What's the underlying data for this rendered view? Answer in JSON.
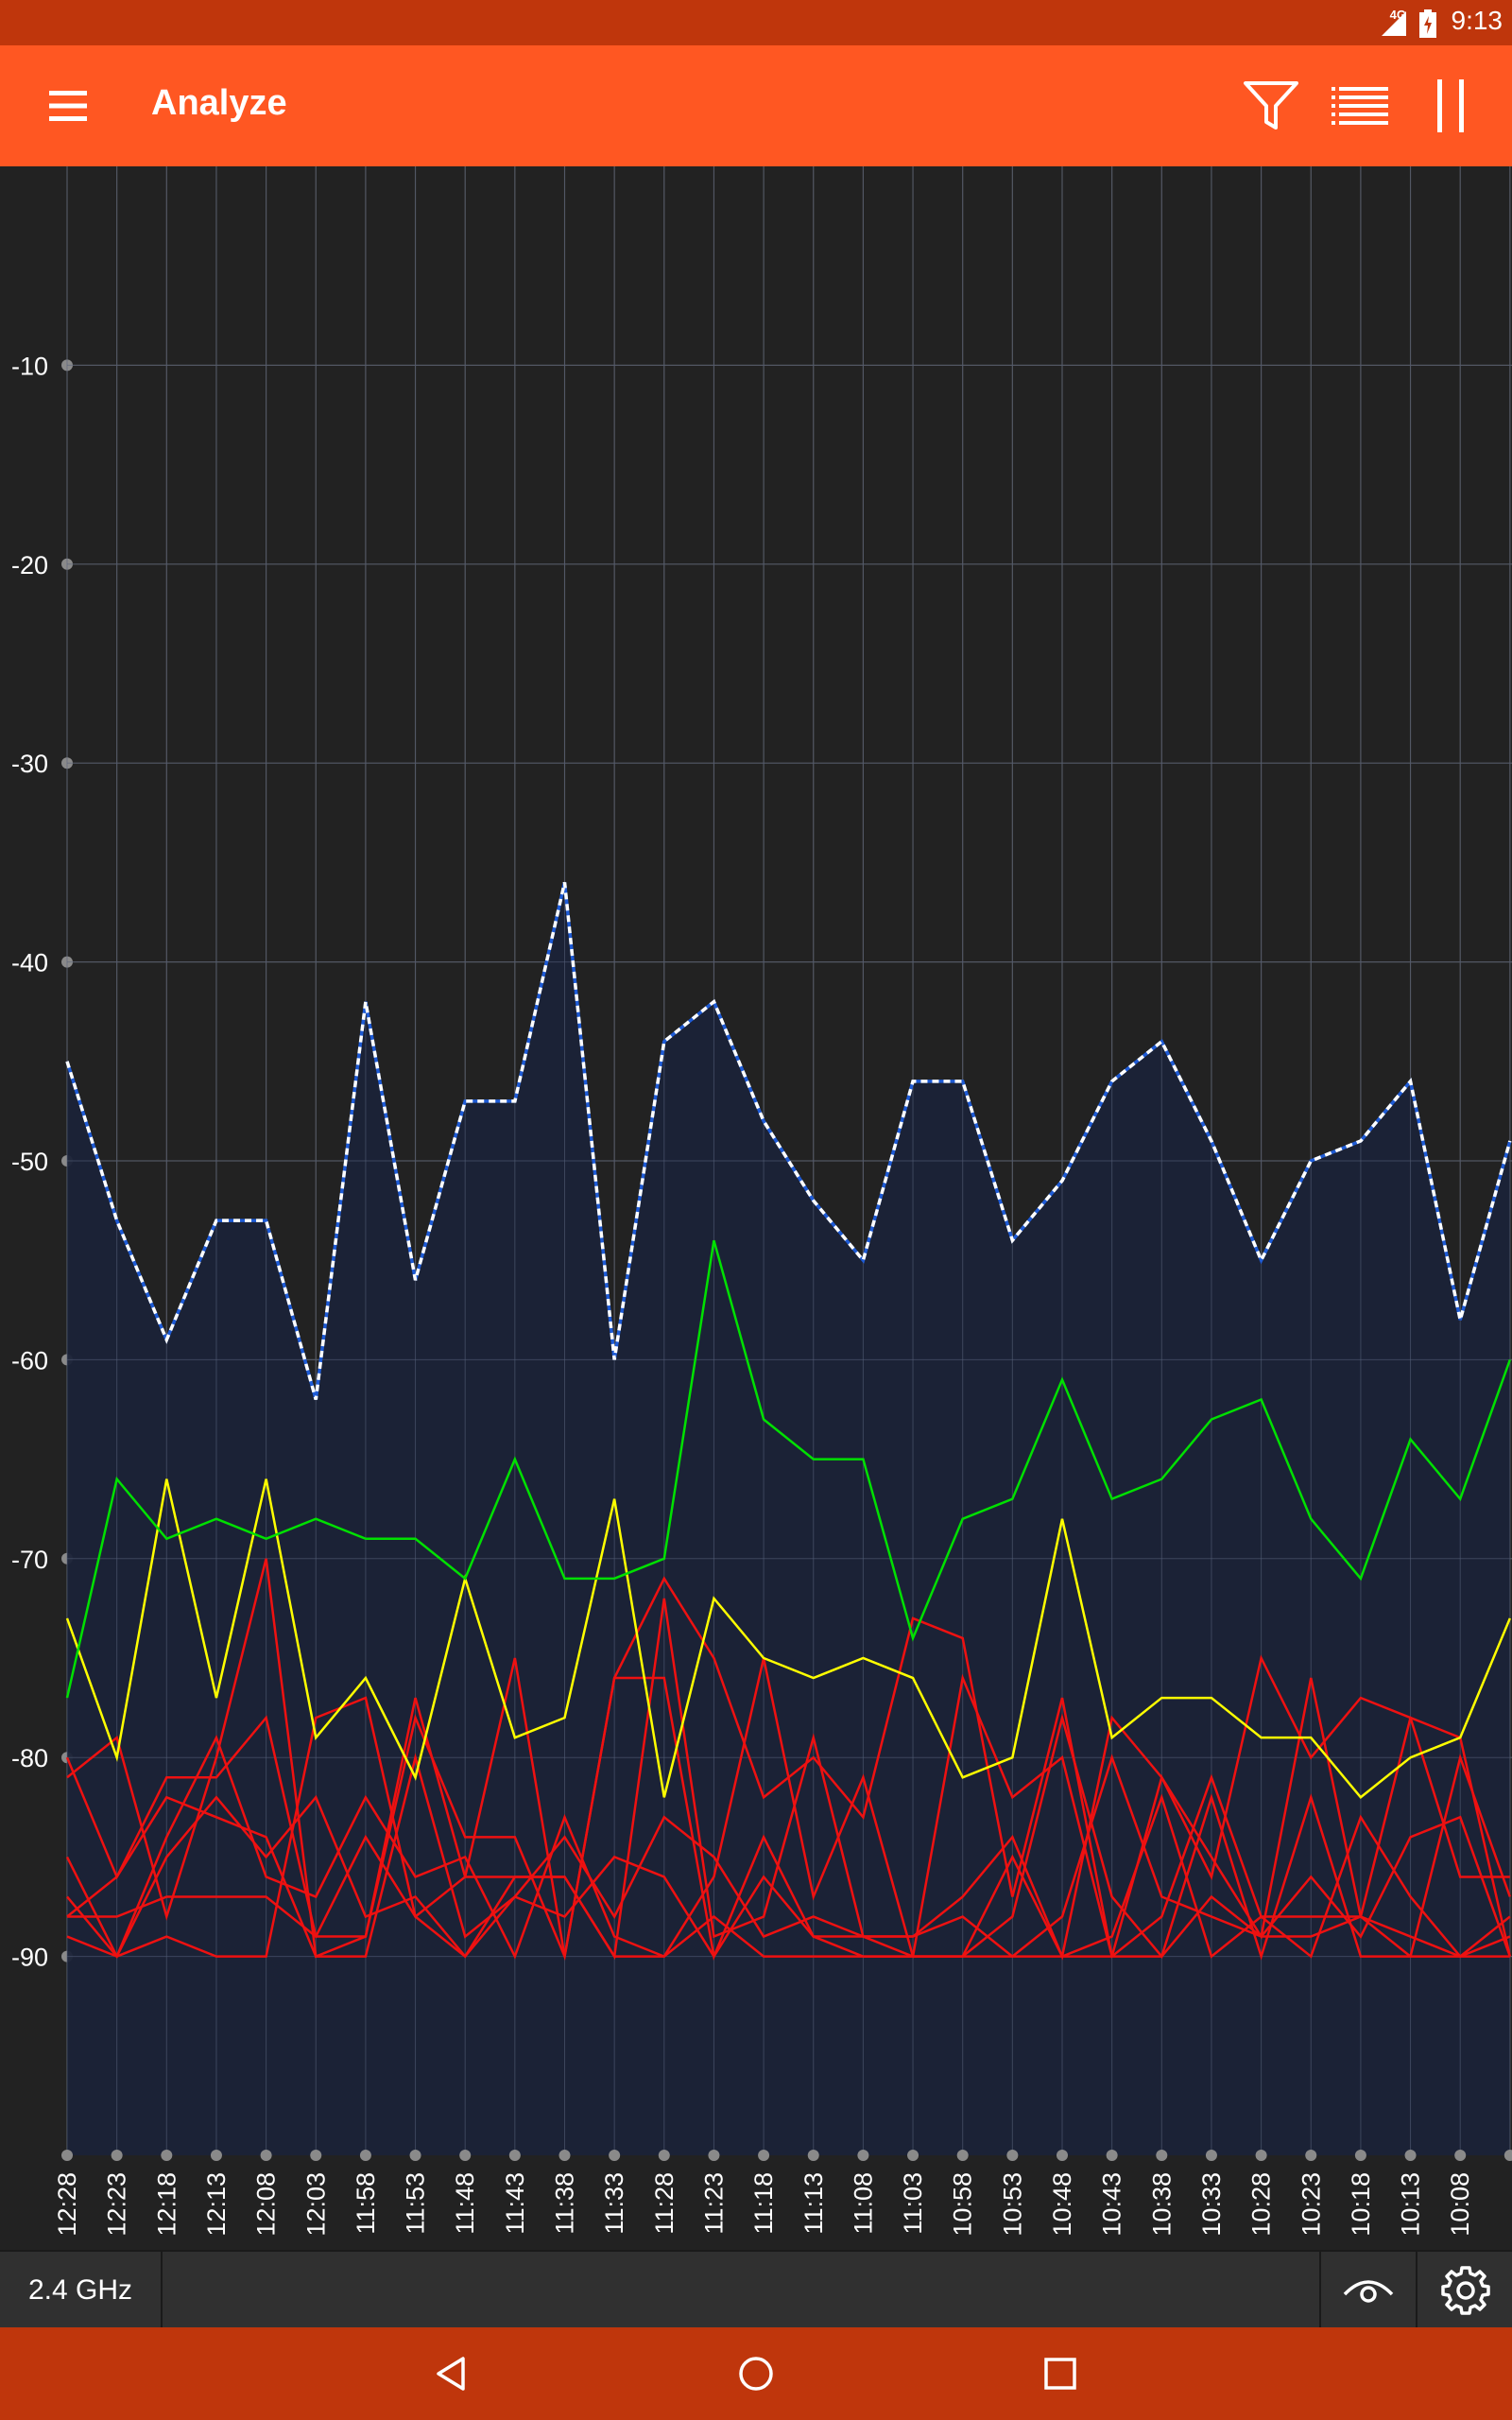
{
  "status_bar": {
    "time": "9:13",
    "network": "4G",
    "icons": [
      "signal-icon",
      "battery-icon"
    ]
  },
  "app_bar": {
    "title": "Analyze",
    "icons": [
      "menu-icon",
      "filter-icon",
      "list-icon",
      "pause-icon"
    ]
  },
  "chart_data": {
    "type": "line",
    "title": "",
    "xlabel": "",
    "ylabel": "",
    "ylim": [
      -100,
      0
    ],
    "yticks": [
      -10,
      -20,
      -30,
      -40,
      -50,
      -60,
      -70,
      -80,
      -90
    ],
    "grid": true,
    "x": [
      "12:28",
      "12:23",
      "12:18",
      "12:13",
      "12:08",
      "12:03",
      "11:58",
      "11:53",
      "11:48",
      "11:43",
      "11:38",
      "11:33",
      "11:28",
      "11:23",
      "11:18",
      "11:13",
      "11:08",
      "11:03",
      "10:58",
      "10:53",
      "10:48",
      "10:43",
      "10:38",
      "10:33",
      "10:28",
      "10:23",
      "10:18",
      "10:13",
      "10:08",
      ""
    ],
    "series": [
      {
        "color": "#ffffff",
        "style": "dashed",
        "fill": "#1b2338",
        "values": [
          -45,
          -53,
          -59,
          -53,
          -53,
          -62,
          -42,
          -56,
          -47,
          -47,
          -36,
          -60,
          -44,
          -42,
          -48,
          -52,
          -55,
          -46,
          -46,
          -54,
          -51,
          -46,
          -44,
          -49,
          -55,
          -50,
          -49,
          -46,
          -58,
          -49
        ]
      },
      {
        "color": "#00e000",
        "values": [
          -77,
          -66,
          -69,
          -68,
          -69,
          -68,
          -69,
          -69,
          -71,
          -65,
          -71,
          -71,
          -70,
          -54,
          -63,
          -65,
          -65,
          -74,
          -68,
          -67,
          -61,
          -67,
          -66,
          -63,
          -62,
          -68,
          -71,
          -64,
          -67,
          -60
        ]
      },
      {
        "color": "#ffff00",
        "values": [
          -73,
          -80,
          -66,
          -77,
          -66,
          -79,
          -76,
          -81,
          -71,
          -79,
          -78,
          -67,
          -82,
          -72,
          -75,
          -76,
          -75,
          -76,
          -81,
          -80,
          -68,
          -79,
          -77,
          -77,
          -79,
          -79,
          -82,
          -80,
          -79,
          -73
        ]
      },
      {
        "color": "#ee1111",
        "values": [
          -81,
          -79,
          -88,
          -80,
          -70,
          -90,
          -89,
          -77,
          -86,
          -75,
          -90,
          -76,
          -71,
          -75,
          -82,
          -80,
          -83,
          -73,
          -74,
          -87,
          -77,
          -90,
          -81,
          -86,
          -75,
          -80,
          -77,
          -78,
          -86,
          -86
        ]
      },
      {
        "color": "#ee1111",
        "values": [
          -88,
          -86,
          -81,
          -81,
          -78,
          -89,
          -89,
          -78,
          -84,
          -84,
          -90,
          -76,
          -76,
          -90,
          -84,
          -89,
          -89,
          -89,
          -87,
          -84,
          -90,
          -78,
          -81,
          -85,
          -89,
          -76,
          -88,
          -78,
          -79,
          -90
        ]
      },
      {
        "color": "#ee1111",
        "values": [
          -85,
          -90,
          -89,
          -90,
          -90,
          -78,
          -77,
          -88,
          -90,
          -86,
          -86,
          -90,
          -72,
          -89,
          -88,
          -79,
          -89,
          -90,
          -76,
          -82,
          -80,
          -90,
          -88,
          -81,
          -88,
          -90,
          -83,
          -87,
          -90,
          -88
        ]
      },
      {
        "color": "#ee1111",
        "values": [
          -87,
          -90,
          -84,
          -79,
          -86,
          -87,
          -82,
          -86,
          -85,
          -90,
          -83,
          -89,
          -90,
          -86,
          -75,
          -87,
          -81,
          -90,
          -90,
          -88,
          -78,
          -87,
          -90,
          -82,
          -90,
          -82,
          -90,
          -90,
          -80,
          -87
        ]
      },
      {
        "color": "#ee1111",
        "values": [
          -80,
          -86,
          -82,
          -83,
          -84,
          -90,
          -90,
          -80,
          -89,
          -87,
          -84,
          -88,
          -83,
          -85,
          -89,
          -88,
          -89,
          -89,
          -88,
          -90,
          -88,
          -80,
          -87,
          -88,
          -89,
          -86,
          -89,
          -84,
          -83,
          -90
        ]
      },
      {
        "color": "#ee1111",
        "values": [
          -89,
          -90,
          -85,
          -82,
          -85,
          -82,
          -88,
          -87,
          -90,
          -87,
          -88,
          -85,
          -86,
          -90,
          -86,
          -89,
          -90,
          -90,
          -90,
          -85,
          -90,
          -89,
          -82,
          -90,
          -88,
          -88,
          -88,
          -89,
          -90,
          -89
        ]
      },
      {
        "color": "#ee1111",
        "values": [
          -88,
          -88,
          -87,
          -87,
          -87,
          -89,
          -84,
          -88,
          -86,
          -86,
          -86,
          -90,
          -90,
          -88,
          -90,
          -90,
          -90,
          -90,
          -90,
          -90,
          -90,
          -90,
          -90,
          -87,
          -89,
          -89,
          -88,
          -90,
          -90,
          -90
        ]
      }
    ]
  },
  "bottom_toolbar": {
    "band": "2.4 GHz",
    "icons": [
      "eye-icon",
      "gear-icon"
    ]
  },
  "nav_bar": {
    "icons": [
      "back-icon",
      "home-icon",
      "recents-icon"
    ]
  }
}
